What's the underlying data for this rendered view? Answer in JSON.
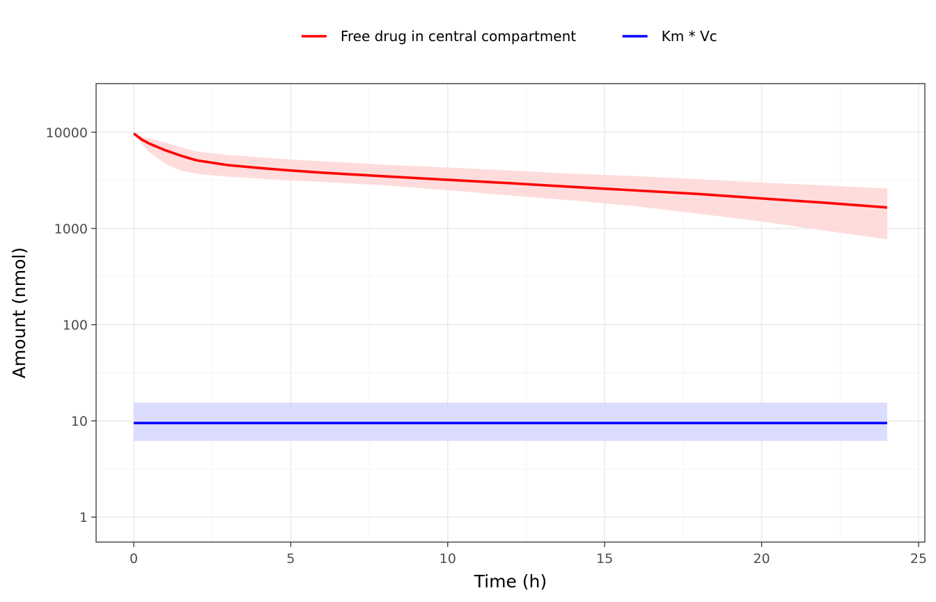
{
  "chart_data": {
    "type": "line",
    "title": "",
    "xlabel": "Time (h)",
    "ylabel": "Amount (nmol)",
    "xlim": [
      -1.2,
      25.2
    ],
    "ylim": [
      0.55,
      32000
    ],
    "yscale": "log",
    "x_ticks": [
      0,
      5,
      10,
      15,
      20,
      25
    ],
    "x_tick_labels": [
      "0",
      "5",
      "10",
      "15",
      "20",
      "25"
    ],
    "y_ticks": [
      1,
      10,
      100,
      1000,
      10000
    ],
    "y_tick_labels": [
      "1",
      "10",
      "100",
      "1000",
      "10000"
    ],
    "grid": true,
    "legend_position": "top",
    "series": [
      {
        "name": "Free drug in central compartment",
        "color": "#ff0000",
        "band_color": "#ffd6d6",
        "x": [
          0,
          0.25,
          0.5,
          1,
          1.5,
          2,
          3,
          4,
          5,
          6,
          8,
          10,
          12,
          14,
          16,
          18,
          20,
          22,
          24
        ],
        "y": [
          9700,
          8400,
          7600,
          6500,
          5700,
          5100,
          4550,
          4250,
          4000,
          3800,
          3480,
          3200,
          2950,
          2700,
          2480,
          2280,
          2050,
          1850,
          1650
        ],
        "lower": [
          9700,
          7600,
          6200,
          4700,
          4000,
          3700,
          3450,
          3300,
          3150,
          3050,
          2800,
          2500,
          2200,
          1950,
          1700,
          1420,
          1180,
          950,
          770
        ],
        "upper": [
          9700,
          9000,
          8600,
          7800,
          7000,
          6300,
          5800,
          5500,
          5200,
          5000,
          4600,
          4300,
          4000,
          3700,
          3500,
          3250,
          3000,
          2800,
          2600
        ]
      },
      {
        "name": "Km * Vc",
        "color": "#0000ff",
        "band_color": "#d6d6ff",
        "x": [
          0,
          24
        ],
        "y": [
          9.5,
          9.5
        ],
        "lower": [
          6.2,
          6.2
        ],
        "upper": [
          15.5,
          15.5
        ]
      }
    ]
  }
}
